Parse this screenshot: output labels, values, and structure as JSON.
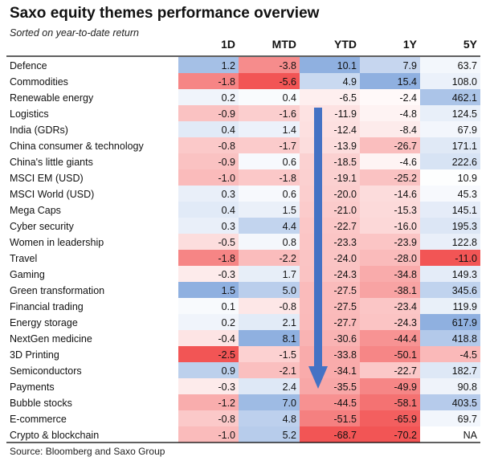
{
  "title": "Saxo equity themes performance overview",
  "subtitle": "Sorted on year-to-date return",
  "source": "Source: Bloomberg and Saxo Group",
  "colors": {
    "positive": "#8fb0e0",
    "negative": "#f25555",
    "arrow": "#4472c4",
    "rule": "#000000"
  },
  "chart_data": {
    "type": "table",
    "columns": [
      "1D",
      "MTD",
      "YTD",
      "1Y",
      "5Y"
    ],
    "rows": [
      {
        "name": "Defence",
        "values": [
          "1.2",
          "-3.8",
          "10.1",
          "7.9",
          "63.7"
        ]
      },
      {
        "name": "Commodities",
        "values": [
          "-1.8",
          "-5.6",
          "4.9",
          "15.4",
          "108.0"
        ]
      },
      {
        "name": "Renewable energy",
        "values": [
          "0.2",
          "0.4",
          "-6.5",
          "-2.4",
          "462.1"
        ]
      },
      {
        "name": "Logistics",
        "values": [
          "-0.9",
          "-1.6",
          "-11.9",
          "-4.8",
          "124.5"
        ]
      },
      {
        "name": "India (GDRs)",
        "values": [
          "0.4",
          "1.4",
          "-12.4",
          "-8.4",
          "67.9"
        ]
      },
      {
        "name": "China consumer & technology",
        "values": [
          "-0.8",
          "-1.7",
          "-13.9",
          "-26.7",
          "171.1"
        ]
      },
      {
        "name": "China's little giants",
        "values": [
          "-0.9",
          "0.6",
          "-18.5",
          "-4.6",
          "222.6"
        ]
      },
      {
        "name": "MSCI EM (USD)",
        "values": [
          "-1.0",
          "-1.8",
          "-19.1",
          "-25.2",
          "10.9"
        ]
      },
      {
        "name": "MSCI World (USD)",
        "values": [
          "0.3",
          "0.6",
          "-20.0",
          "-14.6",
          "45.3"
        ]
      },
      {
        "name": "Mega Caps",
        "values": [
          "0.4",
          "1.5",
          "-21.0",
          "-15.3",
          "145.1"
        ]
      },
      {
        "name": "Cyber security",
        "values": [
          "0.3",
          "4.4",
          "-22.7",
          "-16.0",
          "195.3"
        ]
      },
      {
        "name": "Women in leadership",
        "values": [
          "-0.5",
          "0.8",
          "-23.3",
          "-23.9",
          "122.8"
        ]
      },
      {
        "name": "Travel",
        "values": [
          "-1.8",
          "-2.2",
          "-24.0",
          "-28.0",
          "-11.0"
        ]
      },
      {
        "name": "Gaming",
        "values": [
          "-0.3",
          "1.7",
          "-24.3",
          "-34.8",
          "149.3"
        ]
      },
      {
        "name": "Green transformation",
        "values": [
          "1.5",
          "5.0",
          "-27.5",
          "-38.1",
          "345.6"
        ]
      },
      {
        "name": "Financial trading",
        "values": [
          "0.1",
          "-0.8",
          "-27.5",
          "-23.4",
          "119.9"
        ]
      },
      {
        "name": "Energy storage",
        "values": [
          "0.2",
          "2.1",
          "-27.7",
          "-24.3",
          "617.9"
        ]
      },
      {
        "name": "NextGen medicine",
        "values": [
          "-0.4",
          "8.1",
          "-30.6",
          "-44.4",
          "418.8"
        ]
      },
      {
        "name": "3D Printing",
        "values": [
          "-2.5",
          "-1.5",
          "-33.8",
          "-50.1",
          "-4.5"
        ]
      },
      {
        "name": "Semiconductors",
        "values": [
          "0.9",
          "-2.1",
          "-34.1",
          "-22.7",
          "182.7"
        ]
      },
      {
        "name": "Payments",
        "values": [
          "-0.3",
          "2.4",
          "-35.5",
          "-49.9",
          "90.8"
        ]
      },
      {
        "name": "Bubble stocks",
        "values": [
          "-1.2",
          "7.0",
          "-44.5",
          "-58.1",
          "403.5"
        ]
      },
      {
        "name": "E-commerce",
        "values": [
          "-0.8",
          "4.8",
          "-51.5",
          "-65.9",
          "69.7"
        ]
      },
      {
        "name": "Crypto & blockchain",
        "values": [
          "-1.0",
          "5.2",
          "-68.7",
          "-70.2",
          "NA"
        ]
      }
    ]
  }
}
